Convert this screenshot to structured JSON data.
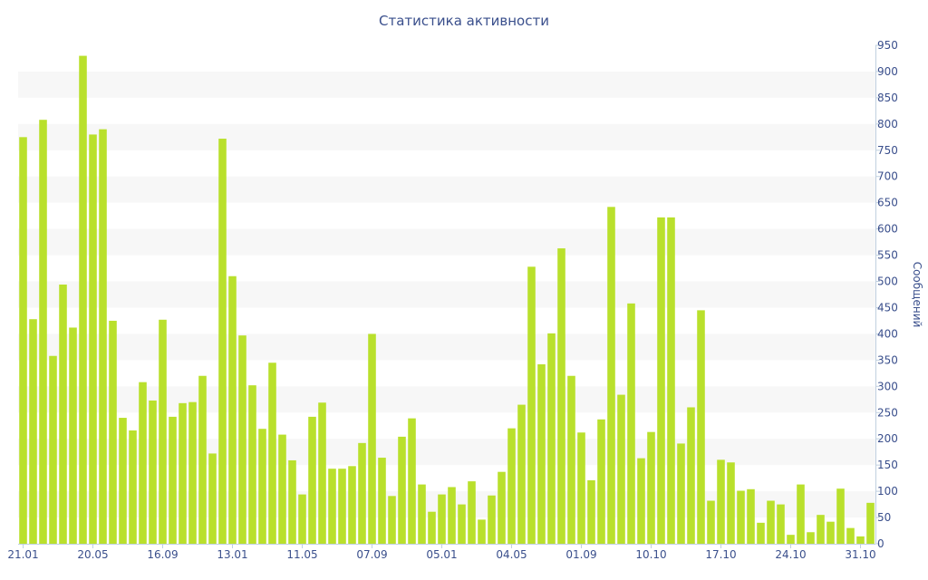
{
  "chart_data": {
    "type": "bar",
    "title": "Статистика активности",
    "ylabel": "Сообщений",
    "xlabel": "",
    "ylim": [
      0,
      950
    ],
    "y_ticks": [
      0,
      50,
      100,
      150,
      200,
      250,
      300,
      350,
      400,
      450,
      500,
      550,
      600,
      650,
      700,
      750,
      800,
      850,
      900,
      950
    ],
    "y_axis_side": "right",
    "grid": "alternating horizontal bands",
    "x_tick_labels": [
      {
        "index": 0,
        "label": "21.01"
      },
      {
        "index": 7,
        "label": "20.05"
      },
      {
        "index": 14,
        "label": "16.09"
      },
      {
        "index": 21,
        "label": "13.01"
      },
      {
        "index": 28,
        "label": "11.05"
      },
      {
        "index": 35,
        "label": "07.09"
      },
      {
        "index": 42,
        "label": "05.01"
      },
      {
        "index": 49,
        "label": "04.05"
      },
      {
        "index": 56,
        "label": "01.09"
      },
      {
        "index": 63,
        "label": "10.10"
      },
      {
        "index": 70,
        "label": "17.10"
      },
      {
        "index": 77,
        "label": "24.10"
      },
      {
        "index": 84,
        "label": "31.10"
      }
    ],
    "series": [
      {
        "color": "#b9e02c",
        "values": [
          775,
          428,
          808,
          358,
          494,
          412,
          930,
          780,
          790,
          425,
          240,
          216,
          308,
          273,
          427,
          242,
          268,
          270,
          320,
          172,
          772,
          510,
          397,
          302,
          219,
          345,
          208,
          159,
          94,
          242,
          269,
          143,
          143,
          148,
          192,
          400,
          164,
          91,
          204,
          239,
          113,
          61,
          94,
          108,
          75,
          119,
          46,
          92,
          137,
          220,
          265,
          528,
          342,
          401,
          563,
          320,
          212,
          121,
          237,
          642,
          284,
          458,
          163,
          213,
          622,
          622,
          191,
          260,
          445,
          82,
          160,
          155,
          101,
          104,
          40,
          82,
          75,
          17,
          113,
          22,
          55,
          42,
          105,
          30,
          14,
          78
        ]
      }
    ]
  },
  "colors": {
    "bar": "#b9e02c",
    "band": "#f7f7f7",
    "axis_text": "#3a4f8c",
    "axis_line": "#c0d0e0"
  }
}
